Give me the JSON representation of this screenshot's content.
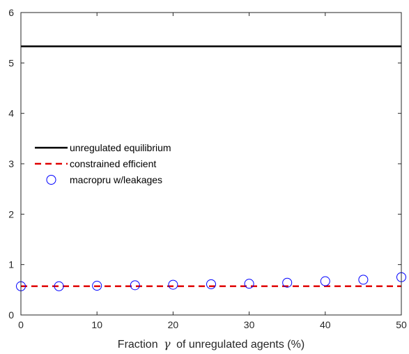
{
  "chart_data": {
    "type": "line",
    "xlabel_prefix": "Fraction",
    "xlabel_symbol": "γ",
    "xlabel_suffix": "of unregulated agents (%)",
    "ylabel": "",
    "title": "",
    "xlim": [
      0,
      50
    ],
    "ylim": [
      0,
      6
    ],
    "xticks": [
      0,
      10,
      20,
      30,
      40,
      50
    ],
    "yticks": [
      0,
      1,
      2,
      3,
      4,
      5,
      6
    ],
    "grid": false,
    "legend_position": "middle-left",
    "series": [
      {
        "name": "unregulated equilibrium",
        "style": "solid-line",
        "color": "#000000",
        "x": [
          0,
          50
        ],
        "y": [
          5.33,
          5.33
        ]
      },
      {
        "name": "constrained efficient",
        "style": "dashed-line",
        "color": "#e00000",
        "x": [
          0,
          50
        ],
        "y": [
          0.57,
          0.57
        ]
      },
      {
        "name": "macropru w/leakages",
        "style": "circle-markers",
        "color": "#0000ff",
        "x": [
          0,
          5,
          10,
          15,
          20,
          25,
          30,
          35,
          40,
          45,
          50
        ],
        "y": [
          0.57,
          0.57,
          0.58,
          0.59,
          0.6,
          0.61,
          0.62,
          0.64,
          0.67,
          0.7,
          0.75
        ]
      }
    ]
  }
}
